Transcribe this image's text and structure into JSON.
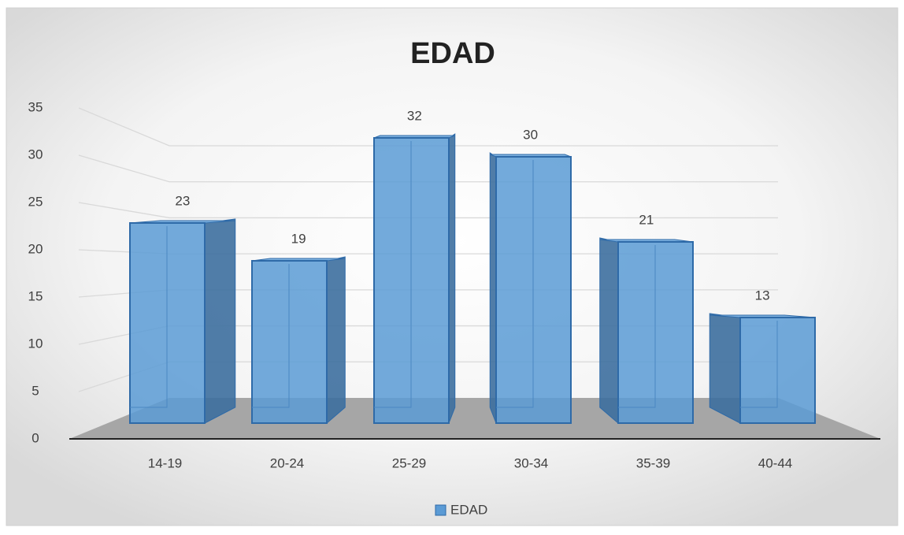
{
  "chart_data": {
    "type": "bar",
    "title": "EDAD",
    "categories": [
      "14-19",
      "20-24",
      "25-29",
      "30-34",
      "35-39",
      "40-44"
    ],
    "series": [
      {
        "name": "EDAD",
        "color": "#5b9bd5",
        "values": [
          23,
          19,
          32,
          30,
          21,
          13
        ]
      }
    ],
    "ylim": [
      0,
      35
    ],
    "yticks": [
      0,
      5,
      10,
      15,
      20,
      25,
      30,
      35
    ],
    "grid": true,
    "legend": "bottom"
  }
}
